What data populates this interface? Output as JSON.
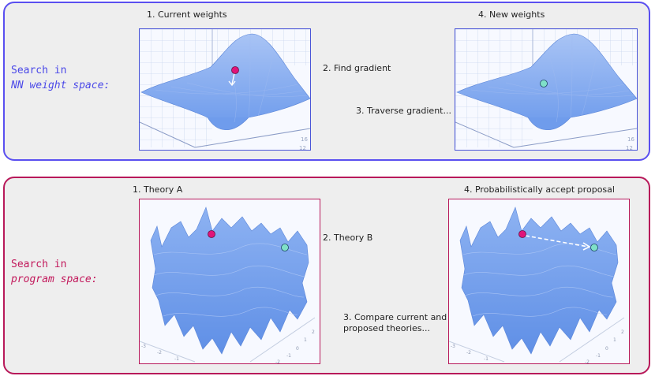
{
  "top": {
    "heading_line1": "Search in",
    "heading_line2": "NN weight space:",
    "step1": "1. Current weights",
    "step2": "2. Find gradient",
    "step3": "3. Traverse gradient...",
    "step4": "4. New weights",
    "axis_ticks": [
      "16",
      "12"
    ]
  },
  "bottom": {
    "heading_line1": "Search in",
    "heading_line2": "program space:",
    "step1": "1. Theory A",
    "step2": "2. Theory B",
    "step3_line1": "3. Compare current and",
    "step3_line2": "proposed theories...",
    "step4": "4. Probabilistically accept proposal",
    "axis_ticks_left": [
      "-3",
      "-2",
      "-1"
    ],
    "axis_ticks_right": [
      "2",
      "1",
      "0",
      "-1",
      "-2"
    ]
  },
  "colors": {
    "top_border": "#5a4ff0",
    "bottom_border": "#b8195a",
    "surface": "#7fa8ef",
    "current_point": "#e0147a",
    "new_point": "#7fe0c8"
  }
}
